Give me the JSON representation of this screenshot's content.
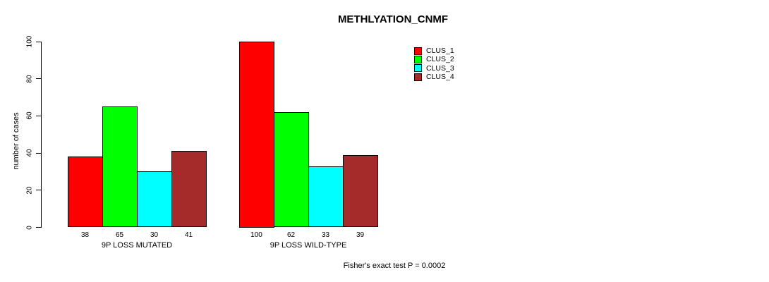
{
  "chart_data": {
    "type": "bar",
    "title": "METHLYATION_CNMF",
    "ylabel": "number of cases",
    "xlabel": "",
    "ylim": [
      0,
      100
    ],
    "yticks": [
      0,
      20,
      40,
      60,
      80,
      100
    ],
    "categories": [
      "9P LOSS MUTATED",
      "9P LOSS WILD-TYPE"
    ],
    "series": [
      {
        "name": "CLUS_1",
        "color": "#FF0000",
        "values": [
          38,
          100
        ]
      },
      {
        "name": "CLUS_2",
        "color": "#00FF00",
        "values": [
          65,
          62
        ]
      },
      {
        "name": "CLUS_3",
        "color": "#00FFFF",
        "values": [
          30,
          33
        ]
      },
      {
        "name": "CLUS_4",
        "color": "#A52A2A",
        "values": [
          41,
          39
        ]
      }
    ],
    "annotation": "Fisher's exact test P = 0.0002",
    "legend_position": "top-right",
    "grid": false,
    "background_color": "#FFFFFF",
    "bar_border_color": "#000000",
    "axis_color": "#000000"
  }
}
